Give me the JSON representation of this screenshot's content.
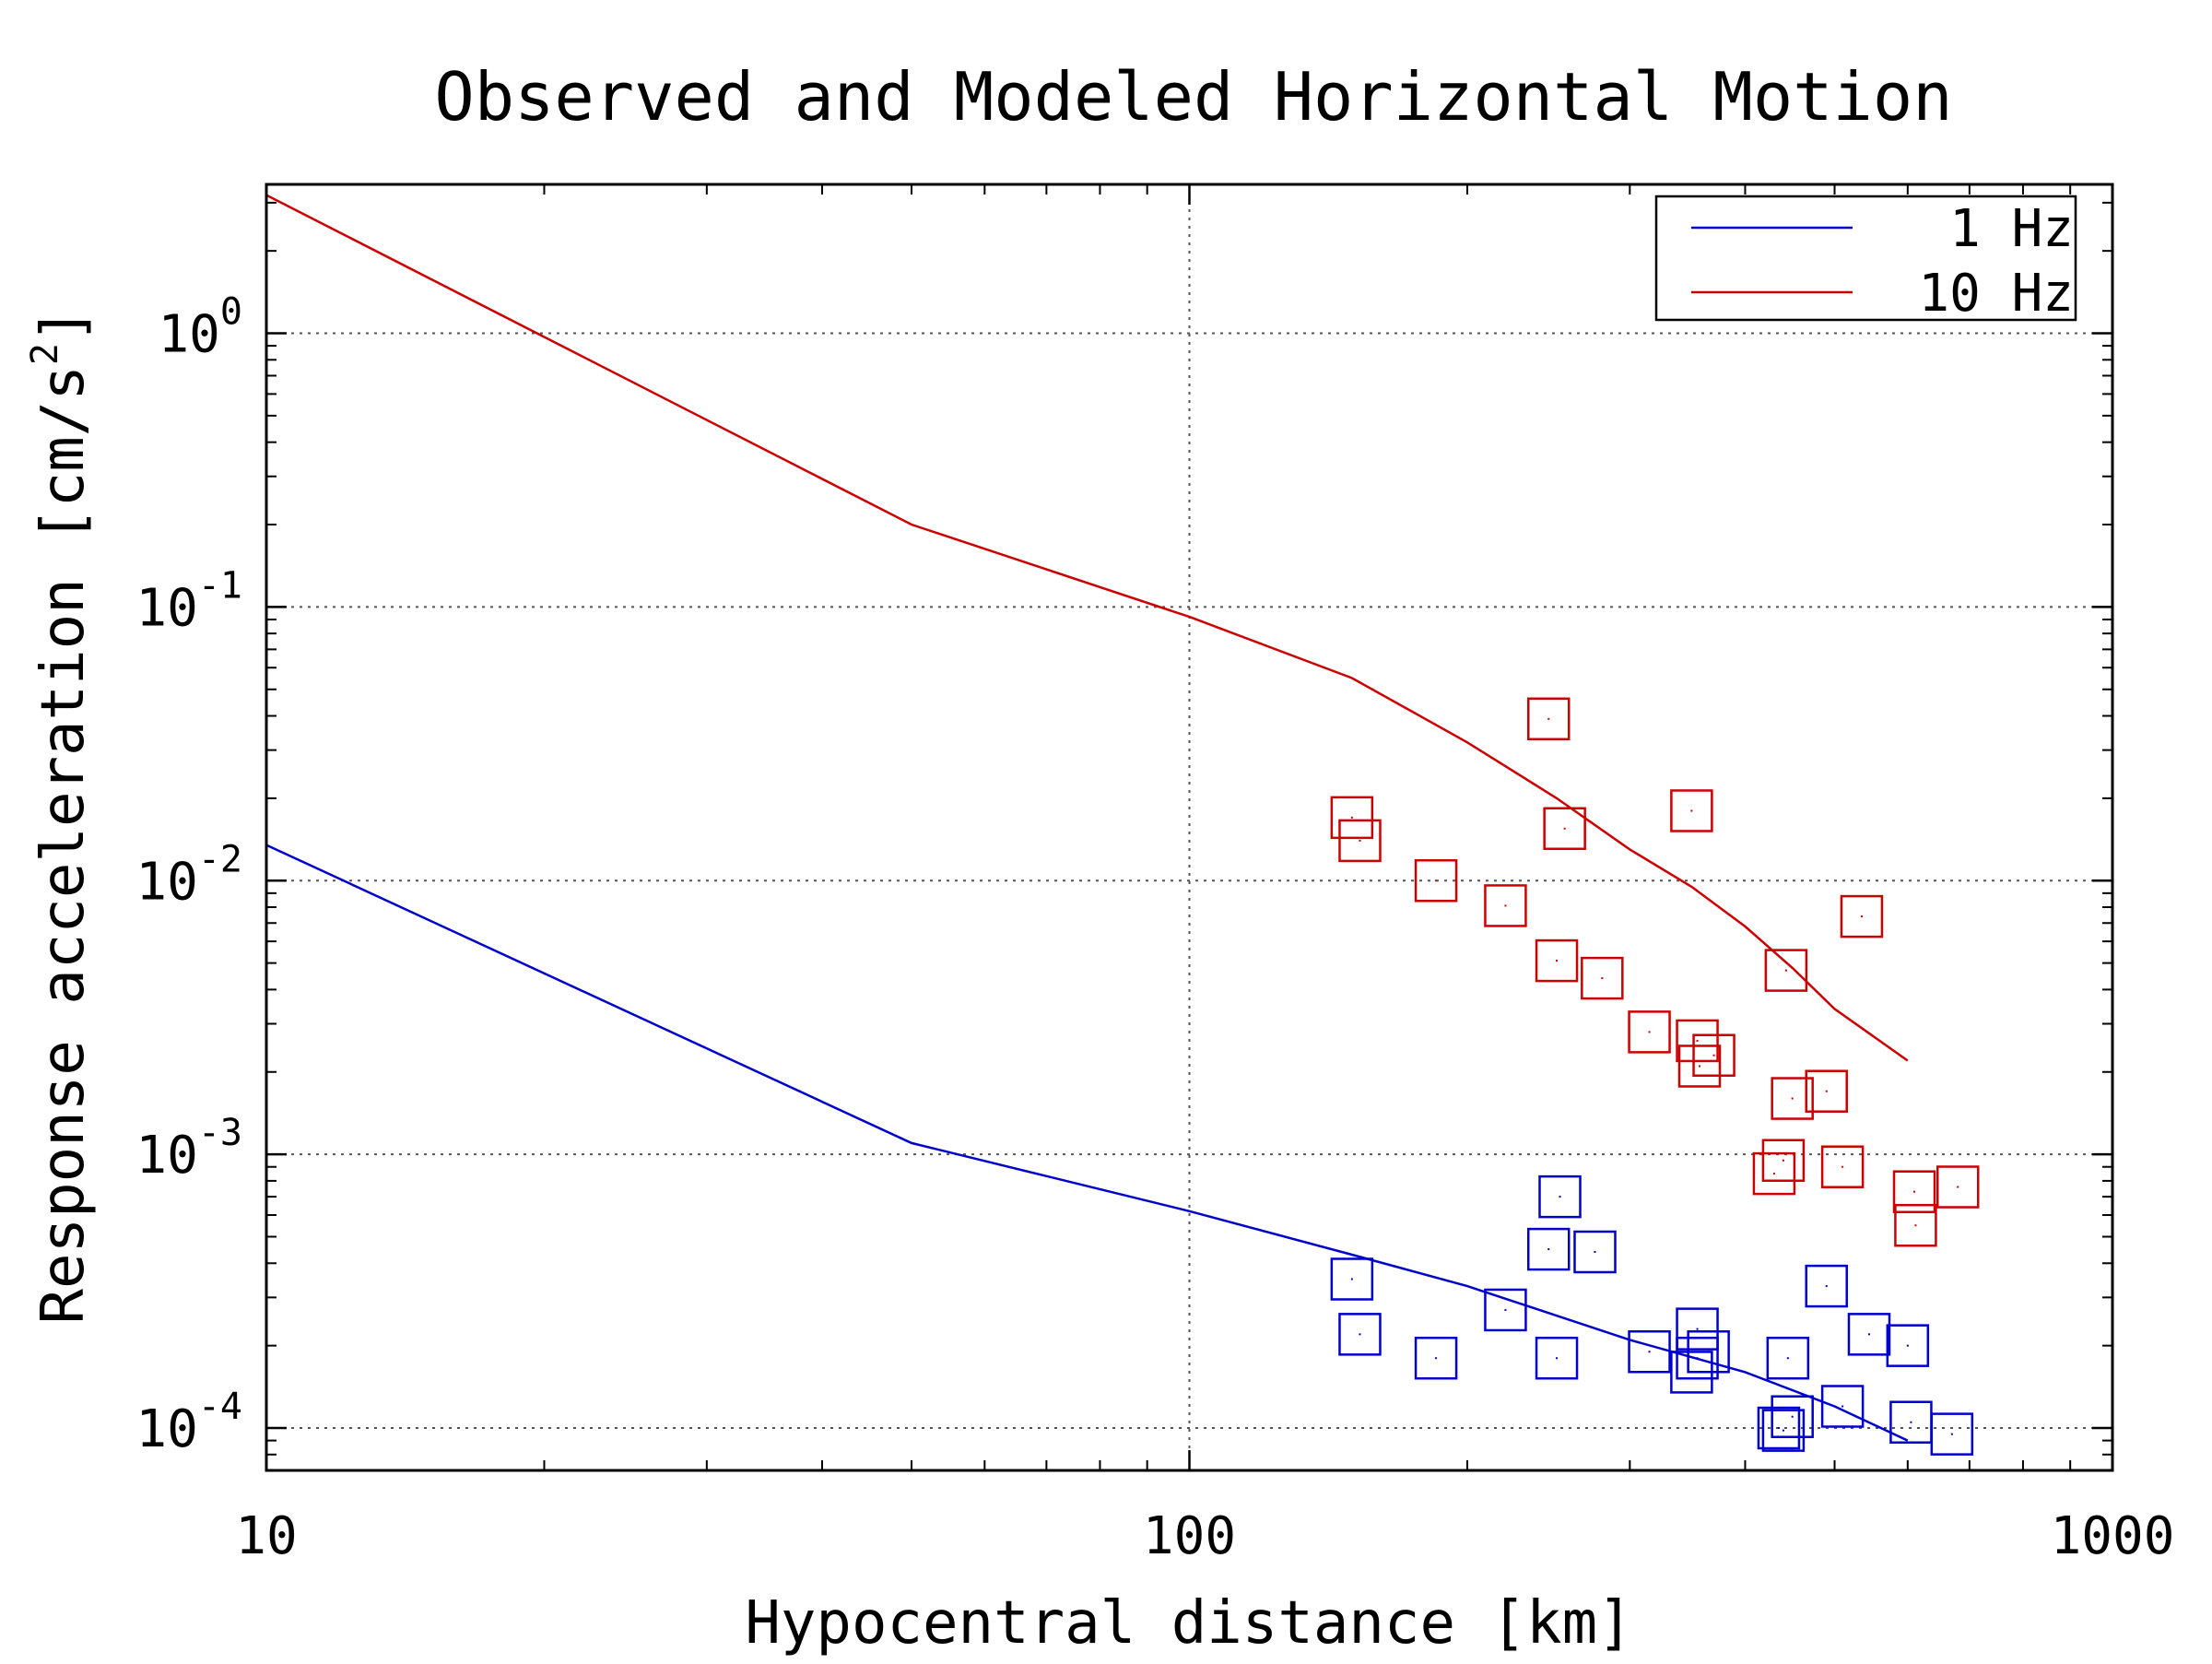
{
  "chart_data": {
    "type": "scatter",
    "title": "Observed and Modeled Horizontal Motion",
    "xlabel": "Hypocentral distance [km]",
    "ylabel": "Response acceleration [cm/s",
    "ylabel_sup": "2",
    "ylabel_end": "]",
    "xscale": "log",
    "yscale": "log",
    "xlim": [
      10,
      1000
    ],
    "ylim": [
      7e-05,
      3.5
    ],
    "grid": true,
    "legend_position": "top-right",
    "x_ticks": [
      {
        "value": 10,
        "label": "10"
      },
      {
        "value": 100,
        "label": "100"
      },
      {
        "value": 1000,
        "label": "1000"
      }
    ],
    "y_ticks": [
      {
        "value": 0.0001,
        "base": "10",
        "exp": "-4"
      },
      {
        "value": 0.001,
        "base": "10",
        "exp": "-3"
      },
      {
        "value": 0.01,
        "base": "10",
        "exp": "-2"
      },
      {
        "value": 0.1,
        "base": "10",
        "exp": "-1"
      },
      {
        "value": 1,
        "base": "10",
        "exp": "0"
      }
    ],
    "series": [
      {
        "name": "1 Hz",
        "color": "#0000cc",
        "model_line": [
          [
            10,
            0.0135
          ],
          [
            50,
            0.0011
          ],
          [
            100,
            0.00062
          ],
          [
            150,
            0.00043
          ],
          [
            200,
            0.00033
          ],
          [
            300,
            0.00021
          ],
          [
            400,
            0.00016
          ],
          [
            500,
            0.00012
          ],
          [
            600,
            9e-05
          ]
        ],
        "observed": [
          [
            150,
            0.00035
          ],
          [
            153,
            0.00022
          ],
          [
            185,
            0.00018
          ],
          [
            220,
            0.00027
          ],
          [
            245,
            0.00045
          ],
          [
            250,
            0.00018
          ],
          [
            252,
            0.0007
          ],
          [
            275,
            0.00044
          ],
          [
            315,
            0.00019
          ],
          [
            350,
            0.00016
          ],
          [
            355,
            0.00018
          ],
          [
            355,
            0.00023
          ],
          [
            365,
            0.00019
          ],
          [
            435,
            0.0001
          ],
          [
            440,
            9.8e-05
          ],
          [
            445,
            0.00018
          ],
          [
            450,
            0.00011
          ],
          [
            490,
            0.00033
          ],
          [
            510,
            0.00012
          ],
          [
            545,
            0.00022
          ],
          [
            600,
            0.0002
          ],
          [
            605,
            0.000105
          ],
          [
            670,
            9.5e-05
          ]
        ]
      },
      {
        "name": "10 Hz",
        "color": "#cc0000",
        "model_line": [
          [
            10,
            3.2
          ],
          [
            50,
            0.2
          ],
          [
            100,
            0.092
          ],
          [
            150,
            0.055
          ],
          [
            200,
            0.032
          ],
          [
            250,
            0.02
          ],
          [
            300,
            0.013
          ],
          [
            350,
            0.0095
          ],
          [
            400,
            0.0068
          ],
          [
            450,
            0.0048
          ],
          [
            500,
            0.0034
          ],
          [
            600,
            0.0022
          ]
        ],
        "observed": [
          [
            150,
            0.017
          ],
          [
            153,
            0.014
          ],
          [
            185,
            0.01
          ],
          [
            220,
            0.0081
          ],
          [
            245,
            0.039
          ],
          [
            250,
            0.0051
          ],
          [
            255,
            0.0155
          ],
          [
            280,
            0.0044
          ],
          [
            315,
            0.0028
          ],
          [
            350,
            0.018
          ],
          [
            355,
            0.0026
          ],
          [
            357,
            0.0021
          ],
          [
            370,
            0.0023
          ],
          [
            430,
            0.00085
          ],
          [
            440,
            0.00095
          ],
          [
            443,
            0.0047
          ],
          [
            450,
            0.0016
          ],
          [
            490,
            0.0017
          ],
          [
            510,
            0.0009
          ],
          [
            535,
            0.0074
          ],
          [
            610,
            0.00073
          ],
          [
            612,
            0.00055
          ],
          [
            680,
            0.00076
          ]
        ]
      }
    ]
  }
}
